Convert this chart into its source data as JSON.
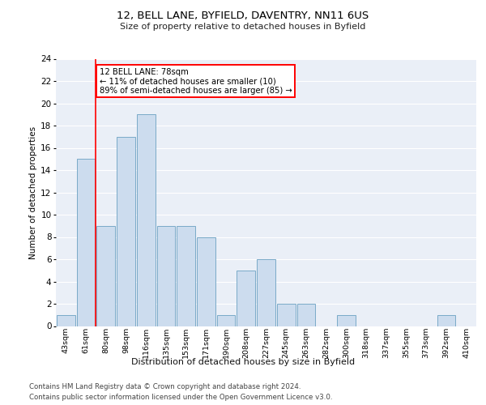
{
  "title1": "12, BELL LANE, BYFIELD, DAVENTRY, NN11 6US",
  "title2": "Size of property relative to detached houses in Byfield",
  "xlabel": "Distribution of detached houses by size in Byfield",
  "ylabel": "Number of detached properties",
  "categories": [
    "43sqm",
    "61sqm",
    "80sqm",
    "98sqm",
    "116sqm",
    "135sqm",
    "153sqm",
    "171sqm",
    "190sqm",
    "208sqm",
    "227sqm",
    "245sqm",
    "263sqm",
    "282sqm",
    "300sqm",
    "318sqm",
    "337sqm",
    "355sqm",
    "373sqm",
    "392sqm",
    "410sqm"
  ],
  "values": [
    1,
    15,
    9,
    17,
    19,
    9,
    9,
    8,
    1,
    5,
    6,
    2,
    2,
    0,
    1,
    0,
    0,
    0,
    0,
    1,
    0
  ],
  "bar_color": "#ccdcee",
  "bar_edge_color": "#7aaac8",
  "annotation_title": "12 BELL LANE: 78sqm",
  "annotation_line1": "← 11% of detached houses are smaller (10)",
  "annotation_line2": "89% of semi-detached houses are larger (85) →",
  "ylim": [
    0,
    24
  ],
  "yticks": [
    0,
    2,
    4,
    6,
    8,
    10,
    12,
    14,
    16,
    18,
    20,
    22,
    24
  ],
  "footer1": "Contains HM Land Registry data © Crown copyright and database right 2024.",
  "footer2": "Contains public sector information licensed under the Open Government Licence v3.0.",
  "background_color": "#eaeff7",
  "grid_color": "#ffffff",
  "fig_bg": "#ffffff"
}
